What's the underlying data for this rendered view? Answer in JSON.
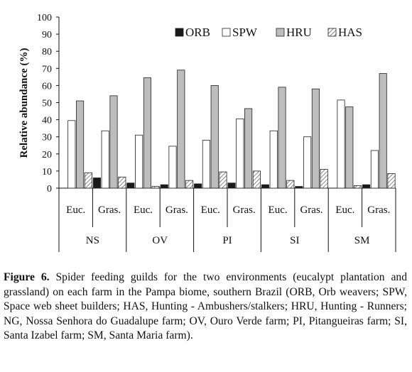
{
  "chart_data": {
    "type": "bar",
    "ylabel": "Relative abundance (%)",
    "ylim": [
      0,
      100
    ],
    "yticks": [
      0,
      10,
      20,
      30,
      40,
      50,
      60,
      70,
      80,
      90,
      100
    ],
    "grid": false,
    "legend_position": "top-right",
    "groups": [
      "NS",
      "OV",
      "PI",
      "SI",
      "SM"
    ],
    "categories": [
      "Euc.",
      "Gras.",
      "Euc.",
      "Gras.",
      "Euc.",
      "Gras.",
      "Euc.",
      "Gras.",
      "Euc.",
      "Gras."
    ],
    "series": [
      {
        "name": "ORB",
        "color": "#1a1a1a",
        "pattern": "solid",
        "values": [
          0,
          6,
          3,
          2,
          2.5,
          3,
          2,
          1,
          0,
          2
        ]
      },
      {
        "name": "SPW",
        "color": "#ffffff",
        "pattern": "solid",
        "values": [
          39.5,
          33.5,
          31,
          24.5,
          28,
          40.5,
          33.5,
          30,
          51.5,
          22
        ]
      },
      {
        "name": "HRU",
        "color": "#bdbdbd",
        "pattern": "solid",
        "values": [
          51,
          54,
          64.5,
          69,
          60,
          46.5,
          59,
          58,
          47.5,
          67
        ]
      },
      {
        "name": "HAS",
        "color": "#e6e6e6",
        "pattern": "hatch",
        "values": [
          9,
          6.5,
          1,
          4.5,
          9.5,
          10,
          4.5,
          11,
          1.5,
          8.5
        ]
      }
    ]
  },
  "caption": {
    "label": "Figure 6.",
    "text": "Spider feeding guilds for the two environments (eucalypt plantation and grassland) on each farm in the Pampa biome, southern Brazil (ORB, Orb weavers; SPW, Space web sheet builders; HAS, Hunting - Ambushers/stalkers; HRU, Hunting - Runners; NG, Nossa Senhora do Guadalupe farm; OV, Ouro Verde farm; PI, Pitangueiras farm; SI, Santa Izabel farm; SM, Santa Maria farm)."
  }
}
